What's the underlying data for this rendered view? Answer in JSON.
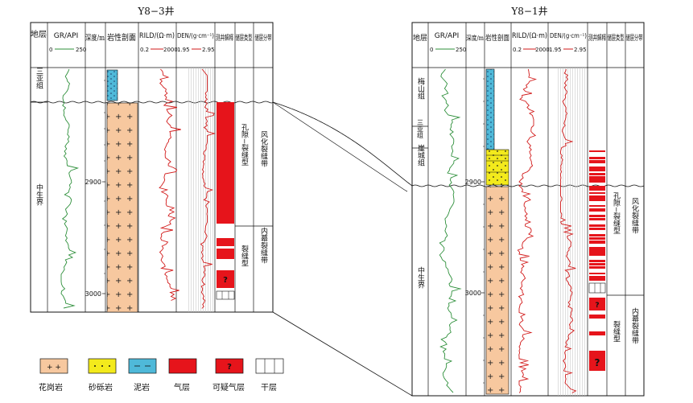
{
  "wells": {
    "left": {
      "title": "Y8−3井",
      "headers": {
        "strat": "地层",
        "gr": "GR/API",
        "gr_min": "0",
        "gr_max": "250",
        "depth": "深度/m",
        "litho": "岩性剖面",
        "rild": "RILD/(Ω·m)",
        "rild_min": "0.2",
        "rild_max": "2000",
        "den": "DEN/(g·cm⁻¹)",
        "den_min": "1.95",
        "den_max": "2.95",
        "interp": "测井解释",
        "reservoir_type": "储层类型",
        "zone": "储层分带"
      },
      "strat_units": [
        "三亚组",
        "中生界"
      ],
      "depth_ticks": [
        "2900",
        "3000"
      ],
      "reservoir_types": [
        "孔隙−裂缝型",
        "裂缝型"
      ],
      "zones": [
        "风化裂缝带",
        "内幕裂缝带"
      ]
    },
    "right": {
      "title": "Y8−1井",
      "headers": {
        "strat": "地层",
        "gr": "GR/API",
        "gr_min": "0",
        "gr_max": "250",
        "depth": "深度/m",
        "litho": "岩性剖面",
        "rild": "RILD/(Ω·m)",
        "rild_min": "0.2",
        "rild_max": "2000",
        "den": "DEN/(g·cm⁻¹)",
        "den_min": "1.95",
        "den_max": "2.95",
        "interp": "测井解释",
        "reservoir_type": "储层类型",
        "zone": "储层分带"
      },
      "strat_units": [
        "梅山组",
        "三亚组",
        "崖城组",
        "中生界"
      ],
      "depth_ticks": [
        "2900",
        "3000"
      ],
      "reservoir_types": [
        "孔隙−裂缝型",
        "裂缝型"
      ],
      "zones": [
        "风化裂缝带",
        "内幕裂缝带"
      ]
    }
  },
  "legend": {
    "granite": "花岗岩",
    "sandstone": "砂砾岩",
    "mudstone": "泥岩",
    "gas": "气层",
    "possible_gas": "可疑气层",
    "dry": "干层",
    "question_mark": "?"
  },
  "colors": {
    "granite": "#f7c89f",
    "sandstone": "#f3ea1c",
    "mudstone": "#4fb9d9",
    "gas": "#e6141b",
    "gr_curve": "#2d8f3a",
    "rild_curve": "#d21a1a",
    "den_curve": "#d21a1a"
  }
}
